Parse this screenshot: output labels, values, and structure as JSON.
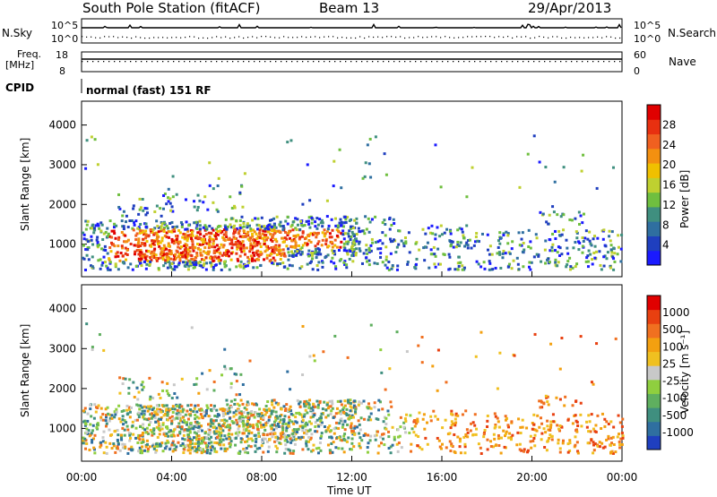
{
  "header": {
    "station": "South Pole Station (fitACF)",
    "beam": "Beam 13",
    "date": "29/Apr/2013"
  },
  "strip_panels": {
    "nsky_label": "N.Sky",
    "nsearch_label": "N.Search",
    "nsky_ticks": [
      "10^5",
      "10^0"
    ],
    "nsearch_ticks": [
      "10^5",
      "10^0"
    ],
    "freq_label_line1": "Freq.",
    "freq_label_line2": "[MHz]",
    "freq_ticks": [
      "18",
      "8"
    ],
    "nave_label": "Nave",
    "nave_ticks": [
      "60",
      "0"
    ],
    "cpid_label": "CPID",
    "cpid_value": "normal (fast) 151 RF"
  },
  "chart_data": [
    {
      "type": "heatmap",
      "name": "power",
      "ylabel": "Slant Range [km]",
      "xlabel": "Time UT",
      "xticks": [
        "00:00",
        "04:00",
        "08:00",
        "12:00",
        "16:00",
        "20:00",
        "00:00"
      ],
      "yticks": [
        "1000",
        "2000",
        "3000",
        "4000"
      ],
      "ylim": [
        180,
        4600
      ],
      "colorbar_label": "Power [dB]",
      "colorbar_ticks": [
        "4",
        "8",
        "12",
        "16",
        "20",
        "24",
        "28"
      ],
      "colorbar_colors": [
        "#1a1aff",
        "#1f3fbf",
        "#2f6fa0",
        "#3f8f7f",
        "#6fbf3f",
        "#bfd030",
        "#f0c000",
        "#f39010",
        "#f06020",
        "#e83010",
        "#e00000"
      ]
    },
    {
      "type": "heatmap",
      "name": "velocity",
      "ylabel": "Slant Range [km]",
      "xlabel": "Time UT",
      "xticks": [
        "00:00",
        "04:00",
        "08:00",
        "12:00",
        "16:00",
        "20:00",
        "00:00"
      ],
      "yticks": [
        "1000",
        "2000",
        "3000",
        "4000"
      ],
      "ylim": [
        180,
        4600
      ],
      "colorbar_label": "Velocity [m s⁻¹]",
      "colorbar_ticks": [
        "1000",
        "500",
        "100",
        "25",
        "-25",
        "-100",
        "-500",
        "-1000"
      ],
      "colorbar_colors": [
        "#1f3fbf",
        "#2f6fa0",
        "#3f8f7f",
        "#5faf5f",
        "#8fcf3f",
        "#c8c8c8",
        "#f0c020",
        "#f3a010",
        "#f07020",
        "#e84010",
        "#e00000"
      ]
    }
  ]
}
